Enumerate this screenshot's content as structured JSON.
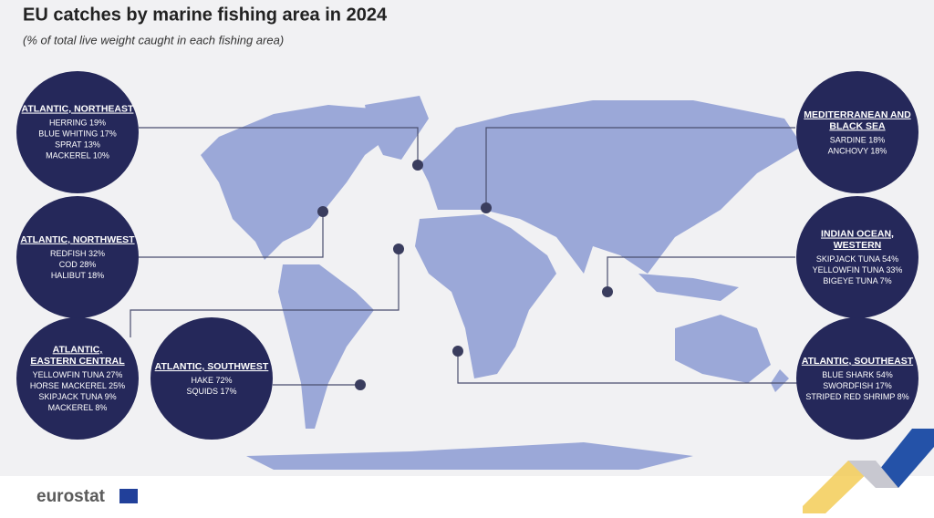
{
  "title": "EU catches by marine fishing area in 2024",
  "subtitle": "(% of total live weight caught in each fishing area)",
  "areas": [
    {
      "name": [
        "ATLANTIC, NORTHEAST"
      ],
      "items": [
        "HERRING 19%",
        "BLUE WHITING 17%",
        "SPRAT 13%",
        "MACKEREL 10%"
      ]
    },
    {
      "name": [
        "ATLANTIC, NORTHWEST"
      ],
      "items": [
        "REDFISH 32%",
        "COD 28%",
        "HALIBUT 18%"
      ]
    },
    {
      "name": [
        "ATLANTIC,",
        "EASTERN CENTRAL"
      ],
      "items": [
        "YELLOWFIN TUNA 27%",
        "HORSE MACKEREL 25%",
        "SKIPJACK TUNA 9%",
        "MACKEREL 8%"
      ]
    },
    {
      "name": [
        "ATLANTIC, SOUTHWEST"
      ],
      "items": [
        "HAKE 72%",
        "SQUIDS 17%"
      ]
    },
    {
      "name": [
        "MEDITERRANEAN AND",
        "BLACK SEA"
      ],
      "items": [
        "SARDINE 18%",
        "ANCHOVY 18%"
      ]
    },
    {
      "name": [
        "INDIAN OCEAN,",
        "WESTERN"
      ],
      "items": [
        "SKIPJACK TUNA 54%",
        "YELLOWFIN TUNA 33%",
        "BIGEYE TUNA 7%"
      ]
    },
    {
      "name": [
        "ATLANTIC, SOUTHEAST"
      ],
      "items": [
        "BLUE SHARK 54%",
        "SWORDFISH 17%",
        "STRIPED RED SHRIMP 8%"
      ]
    }
  ],
  "logo": "eurostat"
}
